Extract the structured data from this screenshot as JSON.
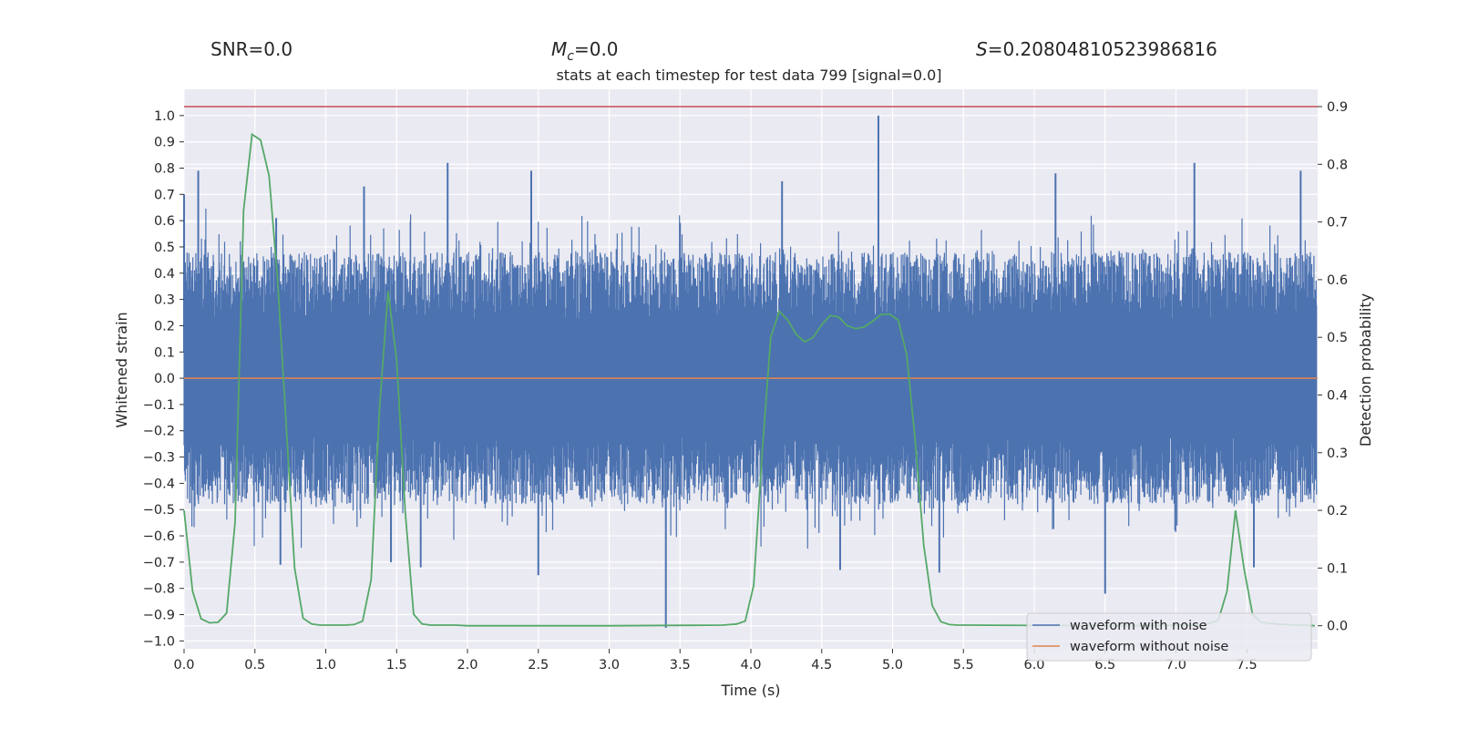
{
  "header": {
    "snr_label": "SNR=0.0",
    "mc_symbol": "M",
    "mc_sub": "c",
    "mc_value": "=0.0",
    "s_symbol": "S",
    "s_value": "=0.20804810523986816"
  },
  "colors": {
    "background": "#eaeaf2",
    "grid": "#ffffff",
    "noisy": "#4c72b0",
    "clean": "#dd8452",
    "probability": "#55a868",
    "threshold": "#c44e52"
  },
  "chart_data": {
    "type": "line",
    "title": "stats at each timestep for test data 799 [signal=0.0]",
    "xlabel": "Time (s)",
    "ylabel": "Whitened strain",
    "y2label": "Detection probability",
    "xlim": [
      0.0,
      8.0
    ],
    "ylim": [
      -1.03,
      1.1
    ],
    "y2lim": [
      -0.04,
      0.93
    ],
    "x_ticks": [
      "0.0",
      "0.5",
      "1.0",
      "1.5",
      "2.0",
      "2.5",
      "3.0",
      "3.5",
      "4.0",
      "4.5",
      "5.0",
      "5.5",
      "6.0",
      "6.5",
      "7.0",
      "7.5"
    ],
    "y_ticks": [
      "1.0",
      "0.9",
      "0.8",
      "0.7",
      "0.6",
      "0.5",
      "0.4",
      "0.3",
      "0.2",
      "0.1",
      "0.0",
      "−0.1",
      "−0.2",
      "−0.3",
      "−0.4",
      "−0.5",
      "−0.6",
      "−0.7",
      "−0.8",
      "−0.9",
      "−1.0"
    ],
    "y2_ticks": [
      "0.9",
      "0.8",
      "0.7",
      "0.6",
      "0.5",
      "0.4",
      "0.3",
      "0.2",
      "0.1",
      "0.0"
    ],
    "legend": {
      "placement": "lower right",
      "entries": [
        "waveform with noise",
        "waveform without noise"
      ]
    },
    "grid": true,
    "threshold": {
      "axis": "right",
      "value": 0.9
    },
    "series": [
      {
        "name": "waveform with noise",
        "axis": "left",
        "kind": "dense noise band",
        "range_approx": [
          -0.95,
          1.0
        ],
        "peaks": [
          [
            0.0,
            0.7
          ],
          [
            0.1,
            0.79
          ],
          [
            0.65,
            0.61
          ],
          [
            1.27,
            0.73
          ],
          [
            1.86,
            0.82
          ],
          [
            2.45,
            0.79
          ],
          [
            4.22,
            0.75
          ],
          [
            4.9,
            1.0
          ],
          [
            6.15,
            0.78
          ],
          [
            7.13,
            0.82
          ],
          [
            7.88,
            0.79
          ]
        ],
        "troughs": [
          [
            0.68,
            -0.71
          ],
          [
            1.46,
            -0.7
          ],
          [
            1.67,
            -0.72
          ],
          [
            2.5,
            -0.75
          ],
          [
            3.4,
            -0.95
          ],
          [
            4.63,
            -0.73
          ],
          [
            5.33,
            -0.74
          ],
          [
            6.5,
            -0.82
          ],
          [
            7.55,
            -0.72
          ]
        ]
      },
      {
        "name": "waveform without noise",
        "axis": "left",
        "x": [
          0.0,
          8.0
        ],
        "y": [
          0.0,
          0.0
        ]
      },
      {
        "name": "",
        "axis": "right",
        "x": [
          0.0,
          0.06,
          0.12,
          0.18,
          0.24,
          0.3,
          0.36,
          0.42,
          0.48,
          0.54,
          0.6,
          0.66,
          0.72,
          0.78,
          0.84,
          0.9,
          0.96,
          1.02,
          1.08,
          1.14,
          1.2,
          1.26,
          1.32,
          1.38,
          1.44,
          1.5,
          1.56,
          1.62,
          1.68,
          1.74,
          1.8,
          1.86,
          1.92,
          2.0,
          3.0,
          3.8,
          3.9,
          3.96,
          4.02,
          4.08,
          4.14,
          4.2,
          4.26,
          4.32,
          4.38,
          4.44,
          4.5,
          4.56,
          4.62,
          4.68,
          4.74,
          4.8,
          4.86,
          4.92,
          4.98,
          5.04,
          5.1,
          5.16,
          5.22,
          5.28,
          5.34,
          5.4,
          5.46,
          5.52,
          6.5,
          7.2,
          7.3,
          7.36,
          7.42,
          7.48,
          7.54,
          7.6,
          7.66,
          7.72,
          7.78,
          7.84,
          7.9,
          7.98
        ],
        "y": [
          0.2,
          0.06,
          0.012,
          0.005,
          0.006,
          0.022,
          0.18,
          0.72,
          0.852,
          0.842,
          0.78,
          0.6,
          0.35,
          0.1,
          0.013,
          0.003,
          0.001,
          0.001,
          0.001,
          0.001,
          0.002,
          0.008,
          0.08,
          0.38,
          0.58,
          0.46,
          0.2,
          0.02,
          0.003,
          0.001,
          0.001,
          0.001,
          0.001,
          0.0,
          0.0,
          0.001,
          0.003,
          0.008,
          0.07,
          0.3,
          0.5,
          0.545,
          0.53,
          0.505,
          0.492,
          0.5,
          0.522,
          0.538,
          0.535,
          0.52,
          0.515,
          0.518,
          0.528,
          0.54,
          0.54,
          0.53,
          0.47,
          0.32,
          0.14,
          0.035,
          0.007,
          0.002,
          0.001,
          0.001,
          0.0,
          0.001,
          0.01,
          0.06,
          0.2,
          0.1,
          0.02,
          0.006,
          0.004,
          0.003,
          0.002,
          0.001,
          0.001,
          0.0
        ]
      }
    ]
  }
}
